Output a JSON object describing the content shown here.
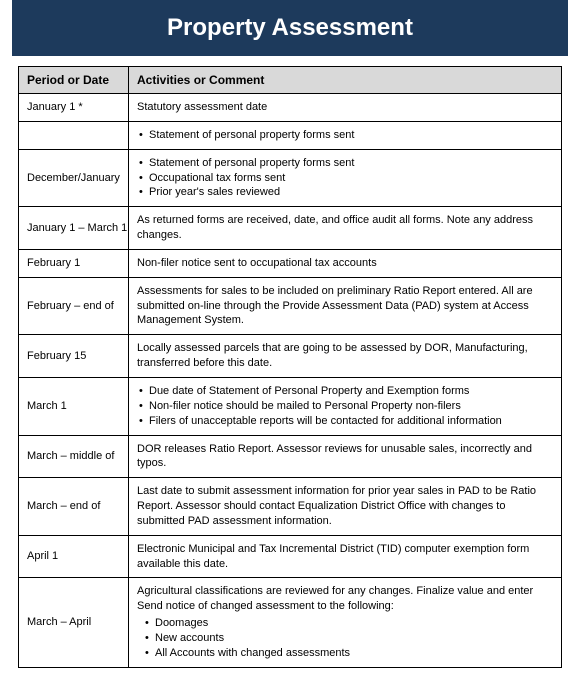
{
  "title": "Property Assessment",
  "columns": [
    "Period or Date",
    "Activities or Comment"
  ],
  "colors": {
    "header_bg": "#1d3a5c",
    "header_text": "#ffffff",
    "th_bg": "#d9d9d9",
    "border": "#000000"
  },
  "rows": [
    {
      "period": "January 1 *",
      "type": "text",
      "content": "Statutory assessment date"
    },
    {
      "period": "",
      "type": "list",
      "items": [
        "Statement of personal property forms sent"
      ]
    },
    {
      "period": "December/January",
      "type": "list",
      "items": [
        "Statement of personal property forms sent",
        "Occupational tax forms sent",
        "Prior year's sales reviewed"
      ]
    },
    {
      "period": "January 1 – March 1",
      "type": "text",
      "content": "As returned forms are received, date, and office audit all forms. Note any address changes."
    },
    {
      "period": "February 1",
      "type": "text",
      "content": "Non-filer notice sent to occupational tax accounts"
    },
    {
      "period": "February – end of",
      "type": "text",
      "content": "Assessments for sales to be included on preliminary Ratio Report entered. All are submitted on-line through the Provide Assessment Data (PAD) system at Access Management System."
    },
    {
      "period": "February 15",
      "type": "text",
      "content": "Locally assessed parcels that are going to be assessed by DOR, Manufacturing, transferred before this date."
    },
    {
      "period": "March 1",
      "type": "list",
      "items": [
        "Due date of Statement of Personal Property and Exemption forms",
        "Non-filer notice should be mailed to Personal Property non-filers",
        "Filers of unacceptable reports will be contacted for additional information"
      ]
    },
    {
      "period": "March – middle of",
      "type": "text",
      "content": "DOR releases Ratio Report. Assessor reviews for unusable sales, incorrectly and typos."
    },
    {
      "period": "March – end of",
      "type": "text",
      "content": "Last date to submit assessment information for prior year sales in PAD to be Ratio Report. Assessor should contact Equalization District Office with changes to submitted PAD assessment information."
    },
    {
      "period": "April 1",
      "type": "text",
      "content": "Electronic Municipal and Tax Incremental District (TID) computer exemption form available this date."
    },
    {
      "period": "March – April",
      "type": "compound",
      "lead": "Agricultural classifications are reviewed for any changes. Finalize value and enter Send notice of changed assessment to the following:",
      "items": [
        "Doomages",
        "New accounts",
        "All Accounts with changed assessments"
      ]
    }
  ]
}
